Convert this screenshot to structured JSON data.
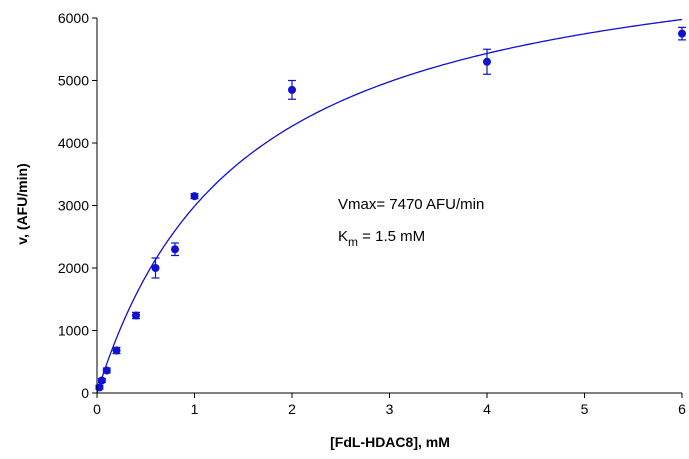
{
  "chart_data": {
    "type": "scatter",
    "title": "",
    "xlabel": "[FdL-HDAC8], mM",
    "ylabel": "v, (AFU/min)",
    "xlim": [
      0,
      6
    ],
    "ylim": [
      0,
      6000
    ],
    "x_ticks": [
      0,
      1,
      2,
      3,
      4,
      5,
      6
    ],
    "y_ticks": [
      0,
      1000,
      2000,
      3000,
      4000,
      5000,
      6000
    ],
    "grid": false,
    "legend": "none",
    "colors": {
      "data": "#1010d0",
      "axis": "#000000"
    },
    "series": [
      {
        "x": [
          0.025,
          0.05,
          0.1,
          0.2,
          0.4,
          0.6,
          0.8,
          1.0,
          2.0,
          4.0,
          6.0
        ],
        "y": [
          90,
          200,
          360,
          680,
          1240,
          2000,
          2300,
          3150,
          4850,
          5300,
          5750
        ],
        "error": [
          30,
          30,
          40,
          50,
          50,
          160,
          100,
          40,
          150,
          200,
          100
        ]
      }
    ],
    "fit": {
      "model": "michaelis-menten",
      "vmax": 7470,
      "km": 1.5
    },
    "annotation": {
      "vmax_label": "Vmax= 7470 AFU/min",
      "km_symbol": "K",
      "km_subscript": "m",
      "km_value": " = 1.5 mM"
    }
  }
}
